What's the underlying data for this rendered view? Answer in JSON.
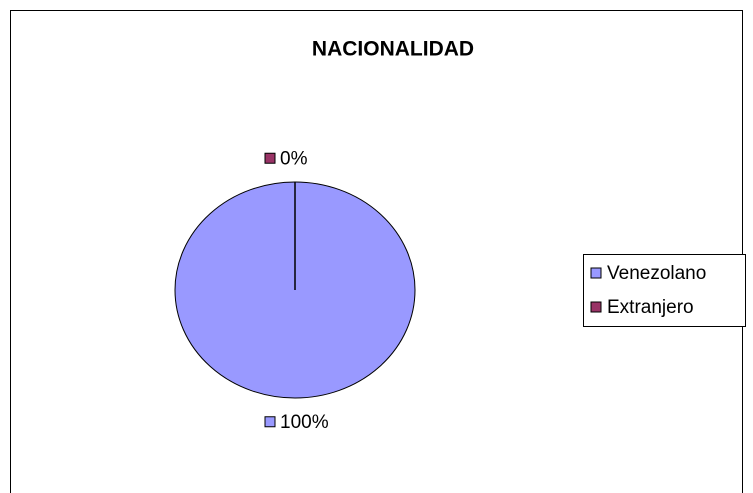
{
  "chart_data": {
    "type": "pie",
    "title": "NACIONALIDAD",
    "categories": [
      "Venezolano",
      "Extranjero"
    ],
    "values": [
      100,
      0
    ],
    "value_labels": [
      "100%",
      "0%"
    ],
    "colors": [
      "#9999ff",
      "#993366"
    ],
    "legend": "right"
  }
}
